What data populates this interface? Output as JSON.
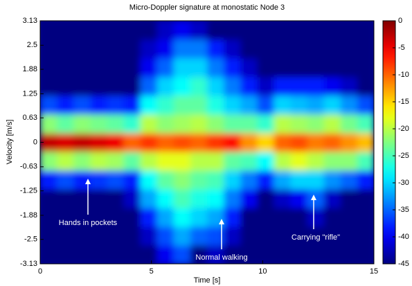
{
  "chart_data": {
    "type": "heatmap",
    "title": "Micro-Doppler signature at monostatic Node 3",
    "x_label": "Time [s]",
    "y_label": "Velocity [m/s]",
    "xlim": [
      0,
      15
    ],
    "ylim": [
      -3.13,
      3.13
    ],
    "xticks": [
      0,
      5,
      10,
      15
    ],
    "yticks": [
      -3.13,
      -2.5,
      -1.88,
      -1.25,
      -0.63,
      0,
      0.63,
      1.25,
      1.88,
      2.5,
      3.13
    ],
    "colormap": "jet",
    "clim": [
      -45,
      0
    ],
    "cticks": [
      0,
      -5,
      -10,
      -15,
      -20,
      -25,
      -30,
      -35,
      -40,
      -45
    ],
    "z": [
      [
        -45,
        -45,
        -45,
        -45,
        -45,
        -45,
        -45,
        -40,
        -36,
        -45,
        -42,
        -45,
        -45,
        -45,
        -45,
        -45,
        -45,
        -45,
        -45,
        -45
      ],
      [
        -45,
        -45,
        -45,
        -45,
        -45,
        -45,
        -42,
        -36,
        -32,
        -35,
        -36,
        -42,
        -45,
        -45,
        -45,
        -45,
        -45,
        -45,
        -45,
        -45
      ],
      [
        -45,
        -45,
        -45,
        -45,
        -45,
        -45,
        -38,
        -32,
        -28,
        -30,
        -32,
        -38,
        -45,
        -45,
        -45,
        -45,
        -42,
        -45,
        -45,
        -45
      ],
      [
        -45,
        -45,
        -45,
        -45,
        -45,
        -42,
        -32,
        -28,
        -25,
        -27,
        -28,
        -34,
        -40,
        -45,
        -42,
        -40,
        -35,
        -42,
        -45,
        -45
      ],
      [
        -38,
        -36,
        -38,
        -37,
        -36,
        -38,
        -28,
        -24,
        -22,
        -24,
        -25,
        -30,
        -34,
        -38,
        -32,
        -30,
        -30,
        -33,
        -35,
        -38
      ],
      [
        -22,
        -20,
        -22,
        -20,
        -21,
        -24,
        -20,
        -18,
        -18,
        -20,
        -20,
        -24,
        -25,
        -28,
        -20,
        -18,
        -20,
        -22,
        -22,
        -25
      ],
      [
        -3,
        -4,
        -3,
        -4,
        -5,
        -10,
        -8,
        -10,
        -9,
        -10,
        -8,
        -6,
        -12,
        -15,
        -10,
        -9,
        -11,
        -10,
        -12,
        -14
      ],
      [
        -22,
        -24,
        -22,
        -23,
        -24,
        -26,
        -20,
        -22,
        -21,
        -20,
        -22,
        -24,
        -24,
        -26,
        -20,
        -21,
        -22,
        -20,
        -23,
        -25
      ],
      [
        -36,
        -38,
        -36,
        -38,
        -37,
        -38,
        -28,
        -26,
        -24,
        -24,
        -27,
        -30,
        -32,
        -36,
        -30,
        -31,
        -32,
        -30,
        -33,
        -36
      ],
      [
        -45,
        -45,
        -45,
        -45,
        -45,
        -45,
        -35,
        -30,
        -28,
        -26,
        -30,
        -34,
        -38,
        -42,
        -38,
        -38,
        -38,
        -40,
        -42,
        -45
      ],
      [
        -45,
        -45,
        -45,
        -45,
        -45,
        -45,
        -40,
        -35,
        -30,
        -30,
        -34,
        -38,
        -42,
        -45,
        -45,
        -45,
        -45,
        -45,
        -45,
        -45
      ],
      [
        -45,
        -45,
        -45,
        -45,
        -45,
        -45,
        -42,
        -40,
        -34,
        -34,
        -38,
        -42,
        -45,
        -45,
        -45,
        -45,
        -45,
        -45,
        -45,
        -45
      ],
      [
        -45,
        -45,
        -45,
        -45,
        -45,
        -45,
        -45,
        -42,
        -40,
        -42,
        -45,
        -45,
        -45,
        -45,
        -45,
        -45,
        -45,
        -45,
        -45,
        -45
      ]
    ],
    "annotations": [
      "Hands in pockets",
      "Normal walking",
      "Carrying \"rifle\""
    ]
  }
}
